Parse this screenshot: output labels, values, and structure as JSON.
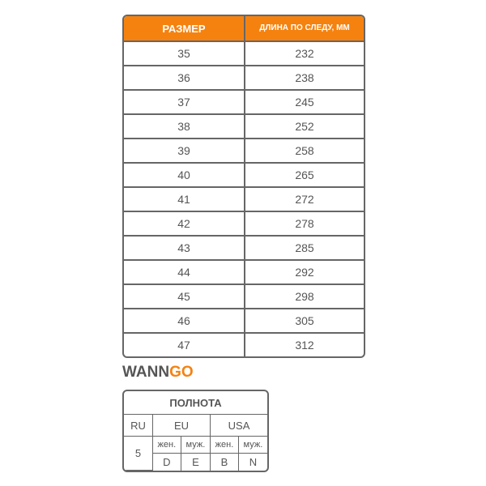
{
  "size_table": {
    "headers": [
      "РАЗМЕР",
      "ДЛИНА ПО СЛЕДУ, ММ"
    ],
    "rows": [
      [
        "35",
        "232"
      ],
      [
        "36",
        "238"
      ],
      [
        "37",
        "245"
      ],
      [
        "38",
        "252"
      ],
      [
        "39",
        "258"
      ],
      [
        "40",
        "265"
      ],
      [
        "41",
        "272"
      ],
      [
        "42",
        "278"
      ],
      [
        "43",
        "285"
      ],
      [
        "44",
        "292"
      ],
      [
        "45",
        "298"
      ],
      [
        "46",
        "305"
      ],
      [
        "47",
        "312"
      ]
    ]
  },
  "logo": {
    "part1": "WANN",
    "part2": "GO"
  },
  "fullness_table": {
    "title": "ПОЛНОТА",
    "ru": "RU",
    "eu": "EU",
    "usa": "USA",
    "ru_value": "5",
    "eu_w": "жен.",
    "eu_m": "муж.",
    "usa_w": "жен.",
    "usa_m": "муж.",
    "eu_w_val": "D",
    "eu_m_val": "E",
    "usa_w_val": "B",
    "usa_m_val": "N"
  },
  "colors": {
    "accent": "#f5820f",
    "text": "#555555",
    "border": "#666666"
  }
}
